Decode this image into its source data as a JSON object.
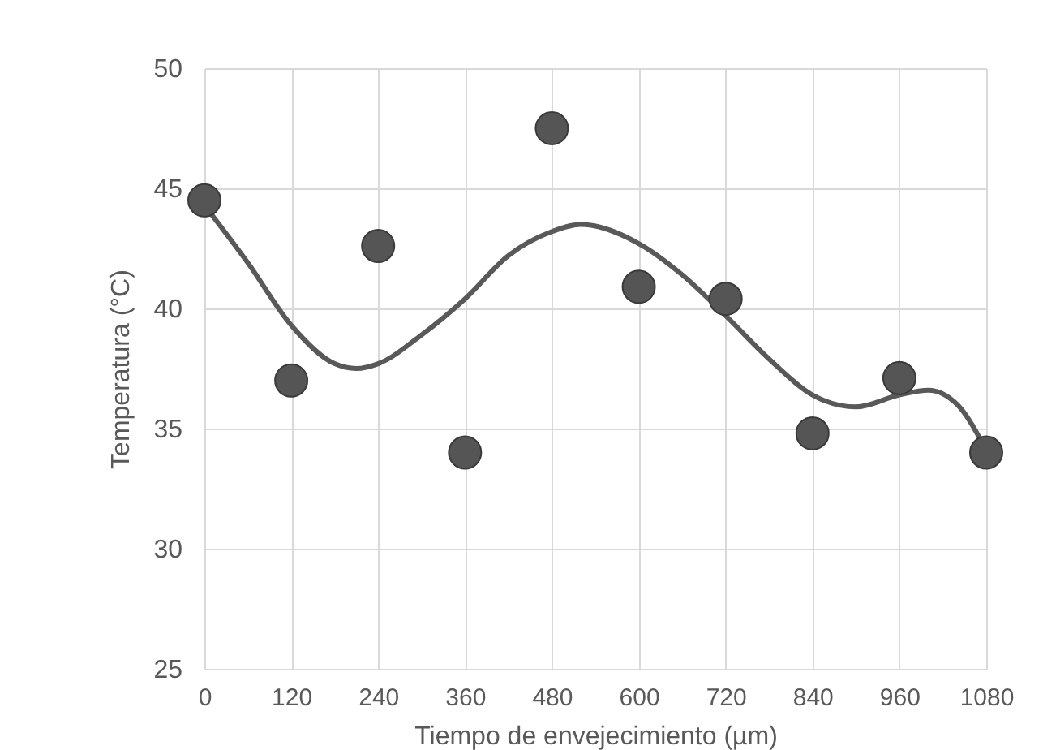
{
  "chart_data": {
    "type": "scatter",
    "xlabel": "Tiempo de envejecimiento (µm)",
    "ylabel": "Temperatura (°C)",
    "xlim": [
      0,
      1080
    ],
    "xticks": [
      0,
      120,
      240,
      360,
      480,
      600,
      720,
      840,
      960,
      1080
    ],
    "ylim": [
      25,
      50
    ],
    "yticks": [
      25,
      30,
      35,
      40,
      45,
      50
    ],
    "grid": true,
    "marker": "circle",
    "series": [
      {
        "color": "#555555",
        "x": [
          0,
          120,
          240,
          360,
          480,
          600,
          720,
          840,
          960,
          1080
        ],
        "values": [
          44.5,
          37.0,
          42.6,
          34.0,
          47.5,
          40.9,
          40.4,
          34.8,
          37.1,
          34.0
        ]
      },
      {
        "type": "line",
        "color": "#595959",
        "line_style": "solid",
        "marker": "none",
        "x": [
          0,
          60,
          120,
          180,
          210,
          240,
          300,
          360,
          420,
          480,
          520,
          600,
          660,
          720,
          780,
          840,
          900,
          960,
          1000,
          1040,
          1080
        ],
        "values": [
          44.3,
          41.9,
          39.3,
          37.7,
          37.5,
          37.7,
          38.9,
          40.4,
          42.2,
          43.2,
          43.5,
          42.7,
          41.4,
          39.7,
          37.9,
          36.4,
          35.9,
          36.4,
          36.6,
          36.0,
          34.1
        ]
      }
    ]
  }
}
